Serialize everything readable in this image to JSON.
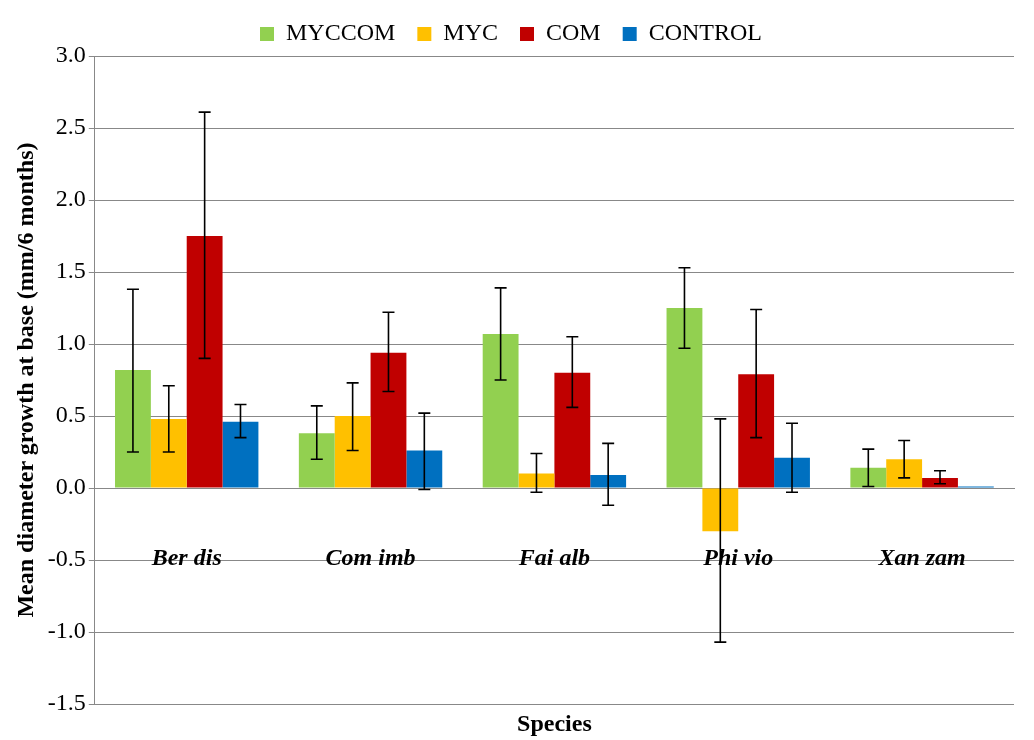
{
  "chart_data": {
    "type": "bar",
    "xlabel": "Species",
    "ylabel": "Mean diameter growth at base (mm/6 months)",
    "categories": [
      "Ber dis",
      "Com imb",
      "Fai alb",
      "Phi vio",
      "Xan zam"
    ],
    "series": [
      {
        "name": "MYCCOM",
        "color": "#92d050",
        "values": [
          0.82,
          0.38,
          1.07,
          1.25,
          0.14
        ],
        "errors": [
          [
            0.25,
            1.38
          ],
          [
            0.2,
            0.57
          ],
          [
            0.75,
            1.39
          ],
          [
            0.97,
            1.53
          ],
          [
            0.01,
            0.27
          ]
        ]
      },
      {
        "name": "MYC",
        "color": "#ffc000",
        "values": [
          0.48,
          0.5,
          0.1,
          -0.3,
          0.2
        ],
        "errors": [
          [
            0.25,
            0.71
          ],
          [
            0.26,
            0.73
          ],
          [
            -0.03,
            0.24
          ],
          [
            -1.07,
            0.48
          ],
          [
            0.07,
            0.33
          ]
        ]
      },
      {
        "name": "COM",
        "color": "#c00000",
        "values": [
          1.75,
          0.94,
          0.8,
          0.79,
          0.07
        ],
        "errors": [
          [
            0.9,
            2.61
          ],
          [
            0.67,
            1.22
          ],
          [
            0.56,
            1.05
          ],
          [
            0.35,
            1.24
          ],
          [
            0.03,
            0.12
          ]
        ]
      },
      {
        "name": "CONTROL",
        "color": "#0070c0",
        "values": [
          0.46,
          0.26,
          0.09,
          0.21,
          0.01
        ],
        "errors": [
          [
            0.35,
            0.58
          ],
          [
            -0.01,
            0.52
          ],
          [
            -0.12,
            0.31
          ],
          [
            -0.03,
            0.45
          ],
          null
        ]
      }
    ],
    "ylim": [
      -1.5,
      3.0
    ],
    "yticks": [
      {
        "value": -1.5,
        "label": "-1.5"
      },
      {
        "value": -1,
        "label": "-1.0"
      },
      {
        "value": -0.5,
        "label": "-0.5"
      },
      {
        "value": 0,
        "label": "0.0"
      },
      {
        "value": 0.5,
        "label": "0.5"
      },
      {
        "value": 1,
        "label": "1.0"
      },
      {
        "value": 1.5,
        "label": "1.5"
      },
      {
        "value": 2,
        "label": "2.0"
      },
      {
        "value": 2.5,
        "label": "2.5"
      },
      {
        "value": 3,
        "label": "3.0"
      }
    ],
    "grid": "y",
    "legend": "top"
  }
}
